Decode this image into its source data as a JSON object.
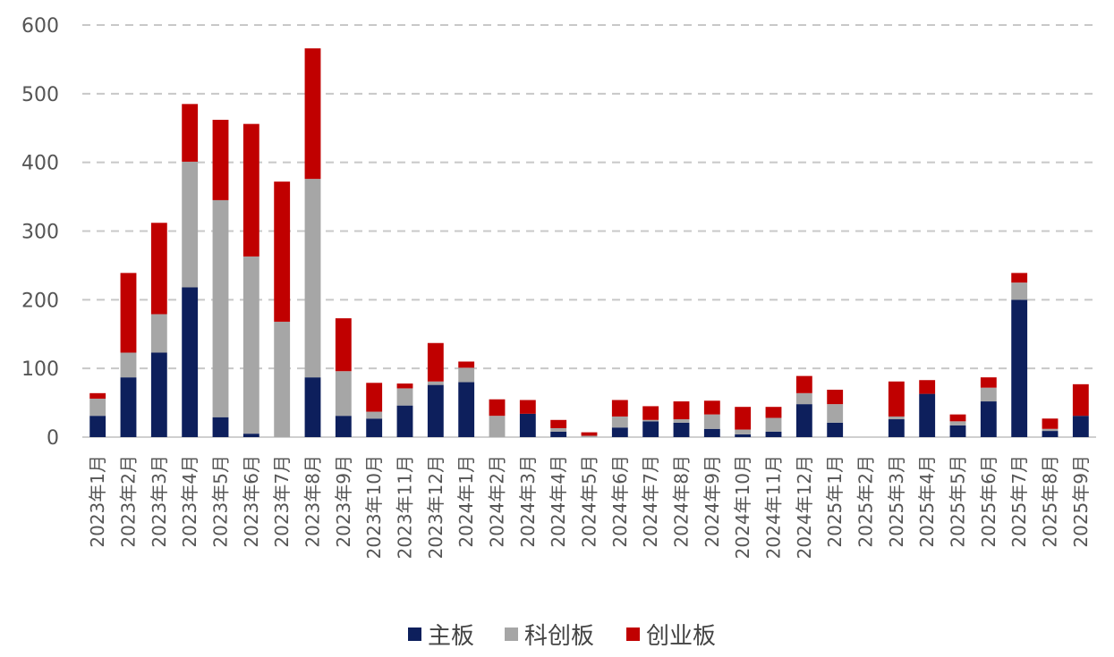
{
  "chart_data": {
    "type": "bar",
    "stacked": true,
    "categories": [
      "2023年1月",
      "2023年2月",
      "2023年3月",
      "2023年4月",
      "2023年5月",
      "2023年6月",
      "2023年7月",
      "2023年8月",
      "2023年9月",
      "2023年10月",
      "2023年11月",
      "2023年12月",
      "2024年1月",
      "2024年2月",
      "2024年3月",
      "2024年4月",
      "2024年5月",
      "2024年6月",
      "2024年7月",
      "2024年8月",
      "2024年9月",
      "2024年10月",
      "2024年11月",
      "2024年12月",
      "2025年1月",
      "2025年2月",
      "2025年3月",
      "2025年4月",
      "2025年5月",
      "2025年6月",
      "2025年7月",
      "2025年8月",
      "2025年9月"
    ],
    "series": [
      {
        "name": "主板",
        "color": "#0d1f5c",
        "values": [
          31,
          87,
          123,
          218,
          29,
          5,
          0,
          87,
          31,
          27,
          46,
          76,
          80,
          0,
          34,
          8,
          0,
          14,
          23,
          21,
          12,
          4,
          8,
          48,
          21,
          0,
          26,
          63,
          17,
          52,
          200,
          9,
          31
        ]
      },
      {
        "name": "科创板",
        "color": "#a6a6a6",
        "values": [
          25,
          36,
          56,
          183,
          316,
          258,
          168,
          289,
          65,
          10,
          25,
          5,
          21,
          31,
          0,
          5,
          2,
          16,
          2,
          5,
          21,
          7,
          20,
          16,
          27,
          0,
          4,
          0,
          6,
          20,
          25,
          3,
          0
        ]
      },
      {
        "name": "创业板",
        "color": "#c00000",
        "values": [
          8,
          116,
          133,
          84,
          117,
          193,
          204,
          190,
          77,
          42,
          7,
          56,
          9,
          24,
          20,
          12,
          5,
          24,
          20,
          26,
          20,
          33,
          16,
          25,
          21,
          0,
          51,
          20,
          10,
          15,
          14,
          15,
          46
        ]
      }
    ],
    "ylim": [
      0,
      600
    ],
    "yticks": [
      "0",
      "100",
      "200",
      "300",
      "400",
      "500",
      "600"
    ],
    "grid": true,
    "legend_position": "bottom-center"
  }
}
